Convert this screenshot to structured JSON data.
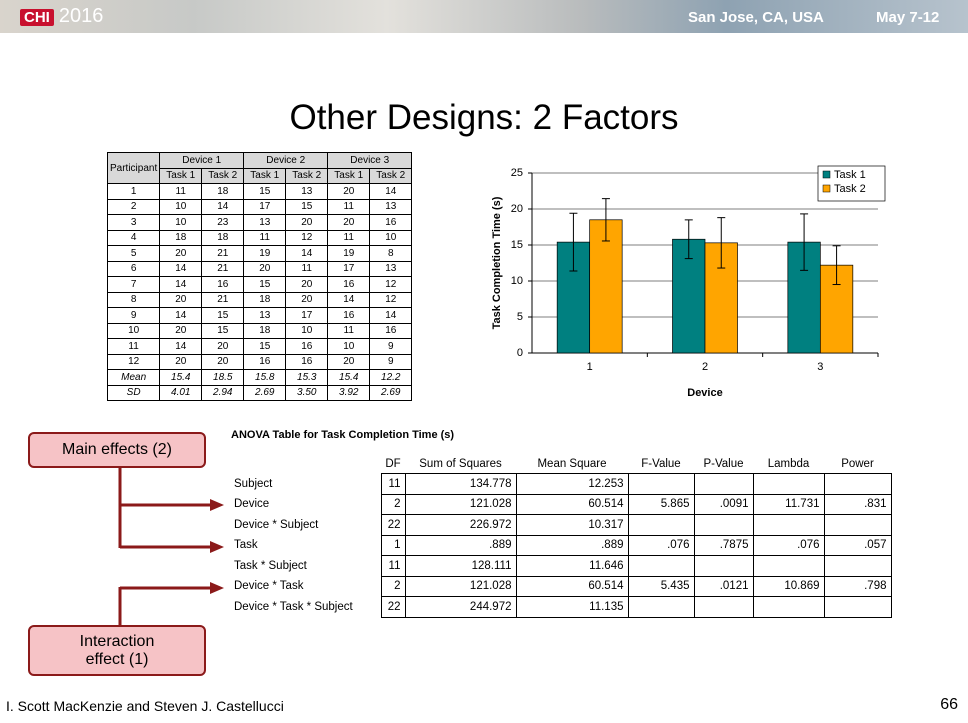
{
  "header": {
    "logo_year": "2016",
    "location": "San Jose, CA, USA",
    "dates": "May 7-12"
  },
  "title": "Other Designs: 2 Factors",
  "data_table": {
    "header": [
      "Participant",
      "Device 1",
      "Device 2",
      "Device 3"
    ],
    "subheader": [
      "Task 1",
      "Task 2",
      "Task 1",
      "Task 2",
      "Task 1",
      "Task 2"
    ],
    "rows": [
      [
        "1",
        "11",
        "18",
        "15",
        "13",
        "20",
        "14"
      ],
      [
        "2",
        "10",
        "14",
        "17",
        "15",
        "11",
        "13"
      ],
      [
        "3",
        "10",
        "23",
        "13",
        "20",
        "20",
        "16"
      ],
      [
        "4",
        "18",
        "18",
        "11",
        "12",
        "11",
        "10"
      ],
      [
        "5",
        "20",
        "21",
        "19",
        "14",
        "19",
        "8"
      ],
      [
        "6",
        "14",
        "21",
        "20",
        "11",
        "17",
        "13"
      ],
      [
        "7",
        "14",
        "16",
        "15",
        "20",
        "16",
        "12"
      ],
      [
        "8",
        "20",
        "21",
        "18",
        "20",
        "14",
        "12"
      ],
      [
        "9",
        "14",
        "15",
        "13",
        "17",
        "16",
        "14"
      ],
      [
        "10",
        "20",
        "15",
        "18",
        "10",
        "11",
        "16"
      ],
      [
        "11",
        "14",
        "20",
        "15",
        "16",
        "10",
        "9"
      ],
      [
        "12",
        "20",
        "20",
        "16",
        "16",
        "20",
        "9"
      ],
      [
        "Mean",
        "15.4",
        "18.5",
        "15.8",
        "15.3",
        "15.4",
        "12.2"
      ],
      [
        "SD",
        "4.01",
        "2.94",
        "2.69",
        "3.50",
        "3.92",
        "2.69"
      ]
    ]
  },
  "chart_data": {
    "type": "bar",
    "x_label": "Device",
    "y_label": "Task Completion Time (s)",
    "categories": [
      "1",
      "2",
      "3"
    ],
    "series": [
      {
        "name": "Task 1",
        "color": "#008080",
        "values": [
          15.4,
          15.8,
          15.4
        ],
        "errors": [
          4.01,
          2.69,
          3.92
        ]
      },
      {
        "name": "Task 2",
        "color": "#ffa500",
        "values": [
          18.5,
          15.3,
          12.2
        ],
        "errors": [
          2.94,
          3.5,
          2.69
        ]
      }
    ],
    "ylim": [
      0,
      25
    ],
    "yticks": [
      0,
      5,
      10,
      15,
      20,
      25
    ],
    "grid": true,
    "legend": "upper right"
  },
  "anova": {
    "title": "ANOVA Table for Task Completion Time (s)",
    "columns": [
      "DF",
      "Sum of Squares",
      "Mean Square",
      "F-Value",
      "P-Value",
      "Lambda",
      "Power"
    ],
    "rows": [
      {
        "source": "Subject",
        "df": "11",
        "ss": "134.778",
        "ms": "12.253"
      },
      {
        "source": "Device",
        "df": "2",
        "ss": "121.028",
        "ms": "60.514",
        "f": "5.865",
        "p": ".0091",
        "lambda": "11.731",
        "power": ".831"
      },
      {
        "source": "Device * Subject",
        "df": "22",
        "ss": "226.972",
        "ms": "10.317"
      },
      {
        "source": "Task",
        "df": "1",
        "ss": ".889",
        "ms": ".889",
        "f": ".076",
        "p": ".7875",
        "lambda": ".076",
        "power": ".057"
      },
      {
        "source": "Task * Subject",
        "df": "11",
        "ss": "128.111",
        "ms": "11.646"
      },
      {
        "source": "Device * Task",
        "df": "2",
        "ss": "121.028",
        "ms": "60.514",
        "f": "5.435",
        "p": ".0121",
        "lambda": "10.869",
        "power": ".798"
      },
      {
        "source": "Device * Task * Subject",
        "df": "22",
        "ss": "244.972",
        "ms": "11.135"
      }
    ]
  },
  "callouts": {
    "main": "Main effects (2)",
    "interaction": "Interaction effect (1)"
  },
  "footer": {
    "authors": "I. Scott MacKenzie and Steven J. Castellucci",
    "page": "66"
  }
}
